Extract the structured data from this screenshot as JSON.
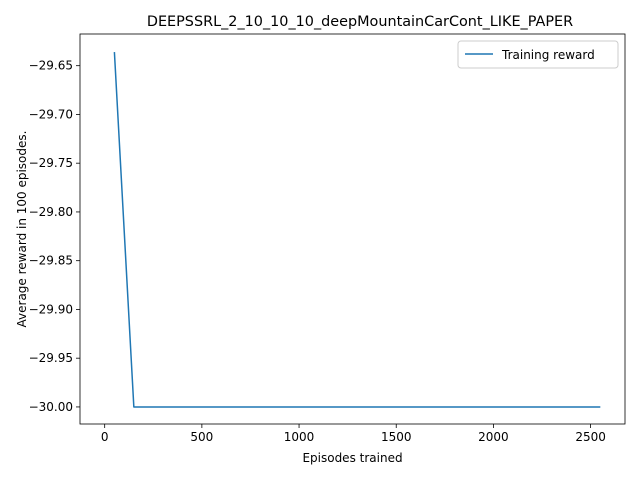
{
  "chart_data": {
    "type": "line",
    "title": "DEEPSSRL_2_10_10_10_deepMountainCarCont_LIKE_PAPER",
    "xlabel": "Episodes trained",
    "ylabel": "Average reward in 100 episodes.",
    "xlim": [
      -127,
      2677
    ],
    "ylim": [
      -30.0175,
      -29.6175
    ],
    "xticks": [
      0,
      500,
      1000,
      1500,
      2000,
      2500
    ],
    "xtick_labels": [
      "0",
      "500",
      "1000",
      "1500",
      "2000",
      "2500"
    ],
    "yticks": [
      -29.65,
      -29.7,
      -29.75,
      -29.8,
      -29.85,
      -29.9,
      -29.95,
      -30.0
    ],
    "ytick_labels": [
      "−29.65",
      "−29.70",
      "−29.75",
      "−29.80",
      "−29.85",
      "−29.90",
      "−29.95",
      "−30.00"
    ],
    "grid": false,
    "legend_position": "upper right",
    "series": [
      {
        "name": "Training reward",
        "color": "#1f77b4",
        "x": [
          50,
          150,
          250,
          350,
          450,
          550,
          650,
          750,
          850,
          950,
          1050,
          1150,
          1250,
          1350,
          1450,
          1550,
          1650,
          1750,
          1850,
          1950,
          2050,
          2150,
          2250,
          2350,
          2450,
          2550
        ],
        "y": [
          -29.636,
          -30.0,
          -30.0,
          -30.0,
          -30.0,
          -30.0,
          -30.0,
          -30.0,
          -30.0,
          -30.0,
          -30.0,
          -30.0,
          -30.0,
          -30.0,
          -30.0,
          -30.0,
          -30.0,
          -30.0,
          -30.0,
          -30.0,
          -30.0,
          -30.0,
          -30.0,
          -30.0,
          -30.0,
          -30.0
        ]
      }
    ]
  }
}
